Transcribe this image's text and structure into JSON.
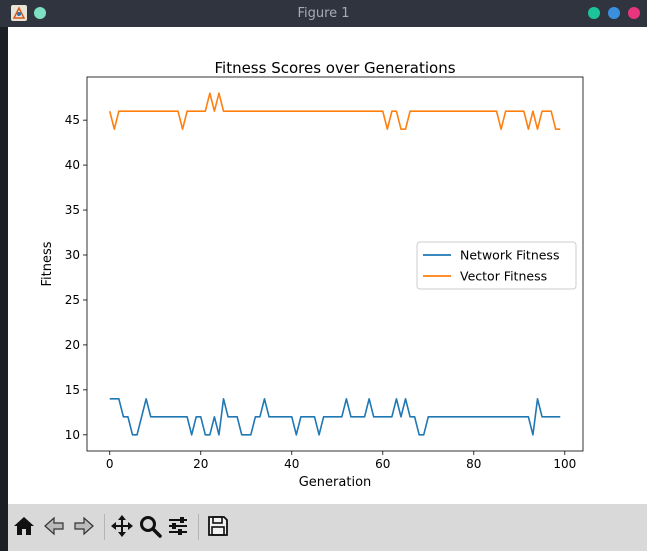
{
  "window": {
    "title": "Figure 1",
    "buttons": [
      {
        "name": "minimize",
        "color": "#1bc49a"
      },
      {
        "name": "maximize",
        "color": "#3b8fdf"
      },
      {
        "name": "close",
        "color": "#e9357d"
      }
    ],
    "extra_button_color": "#7ee0c2"
  },
  "toolbar": {
    "tools": [
      {
        "name": "home-icon"
      },
      {
        "name": "back-icon"
      },
      {
        "name": "forward-icon"
      },
      {
        "name": "pan-icon"
      },
      {
        "name": "zoom-icon"
      },
      {
        "name": "configure-subplots-icon"
      },
      {
        "name": "save-icon"
      }
    ]
  },
  "chart_data": {
    "type": "line",
    "title": "Fitness Scores over Generations",
    "xlabel": "Generation",
    "ylabel": "Fitness",
    "xlim": [
      -5,
      104
    ],
    "ylim": [
      8.2,
      49.8
    ],
    "xticks": [
      0,
      20,
      40,
      60,
      80,
      100
    ],
    "yticks": [
      10,
      15,
      20,
      25,
      30,
      35,
      40,
      45
    ],
    "grid": false,
    "legend_position": "center-right",
    "series": [
      {
        "name": "Network Fitness",
        "color": "#1f77b4",
        "values": [
          14,
          14,
          14,
          12,
          12,
          10,
          10,
          12,
          14,
          12,
          12,
          12,
          12,
          12,
          12,
          12,
          12,
          12,
          10,
          12,
          12,
          10,
          10,
          12,
          10,
          14,
          12,
          12,
          12,
          10,
          10,
          10,
          12,
          12,
          14,
          12,
          12,
          12,
          12,
          12,
          12,
          10,
          12,
          12,
          12,
          12,
          10,
          12,
          12,
          12,
          12,
          12,
          14,
          12,
          12,
          12,
          12,
          14,
          12,
          12,
          12,
          12,
          12,
          14,
          12,
          14,
          12,
          12,
          10,
          10,
          12,
          12,
          12,
          12,
          12,
          12,
          12,
          12,
          12,
          12,
          12,
          12,
          12,
          12,
          12,
          12,
          12,
          12,
          12,
          12,
          12,
          12,
          12,
          10,
          14,
          12,
          12,
          12,
          12,
          12
        ]
      },
      {
        "name": "Vector Fitness",
        "color": "#ff7f0e",
        "values": [
          46,
          44,
          46,
          46,
          46,
          46,
          46,
          46,
          46,
          46,
          46,
          46,
          46,
          46,
          46,
          46,
          44,
          46,
          46,
          46,
          46,
          46,
          48,
          46,
          48,
          46,
          46,
          46,
          46,
          46,
          46,
          46,
          46,
          46,
          46,
          46,
          46,
          46,
          46,
          46,
          46,
          46,
          46,
          46,
          46,
          46,
          46,
          46,
          46,
          46,
          46,
          46,
          46,
          46,
          46,
          46,
          46,
          46,
          46,
          46,
          46,
          44,
          46,
          46,
          44,
          44,
          46,
          46,
          46,
          46,
          46,
          46,
          46,
          46,
          46,
          46,
          46,
          46,
          46,
          46,
          46,
          46,
          46,
          46,
          46,
          46,
          44,
          46,
          46,
          46,
          46,
          46,
          44,
          46,
          44,
          46,
          46,
          46,
          44,
          44
        ]
      }
    ]
  }
}
